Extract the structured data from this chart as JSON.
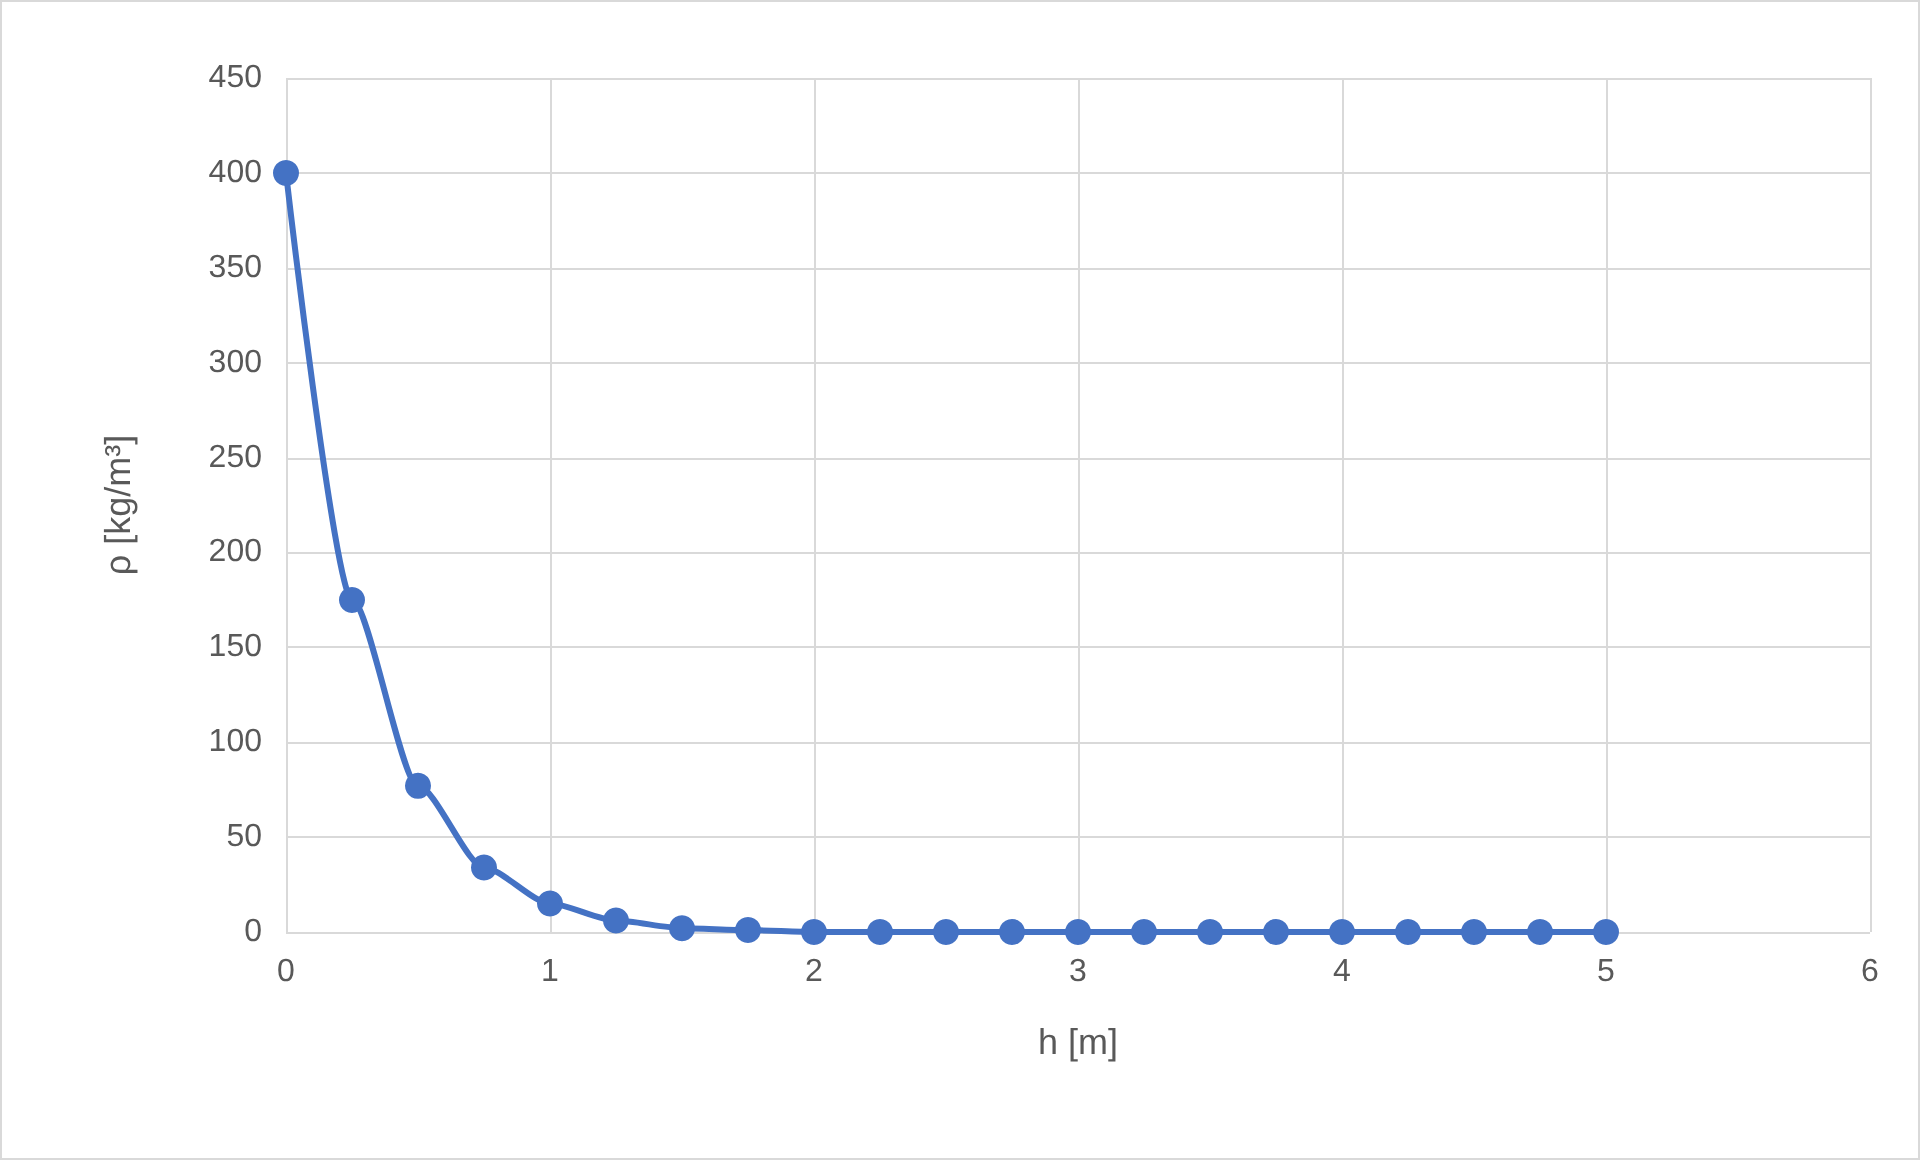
{
  "chart_data": {
    "type": "line",
    "xlabel": "h [m]",
    "ylabel": "ρ [kg/m³]",
    "x": [
      0,
      0.25,
      0.5,
      0.75,
      1,
      1.25,
      1.5,
      1.75,
      2,
      2.25,
      2.5,
      2.75,
      3,
      3.25,
      3.5,
      3.75,
      4,
      4.25,
      4.5,
      4.75,
      5
    ],
    "series": [
      {
        "color": "#4472c4",
        "values": [
          400,
          175,
          77,
          34,
          15,
          6,
          2,
          1,
          0,
          0,
          0,
          0,
          0,
          0,
          0,
          0,
          0,
          0,
          0,
          0,
          0
        ]
      }
    ],
    "xlim": [
      0,
      6
    ],
    "xticks": [
      0,
      1,
      2,
      3,
      4,
      5,
      6
    ],
    "ylim": [
      0,
      450
    ],
    "yticks": [
      0,
      50,
      100,
      150,
      200,
      250,
      300,
      350,
      400,
      450
    ],
    "grid": true,
    "marker": "circle",
    "line_style": "solid"
  }
}
